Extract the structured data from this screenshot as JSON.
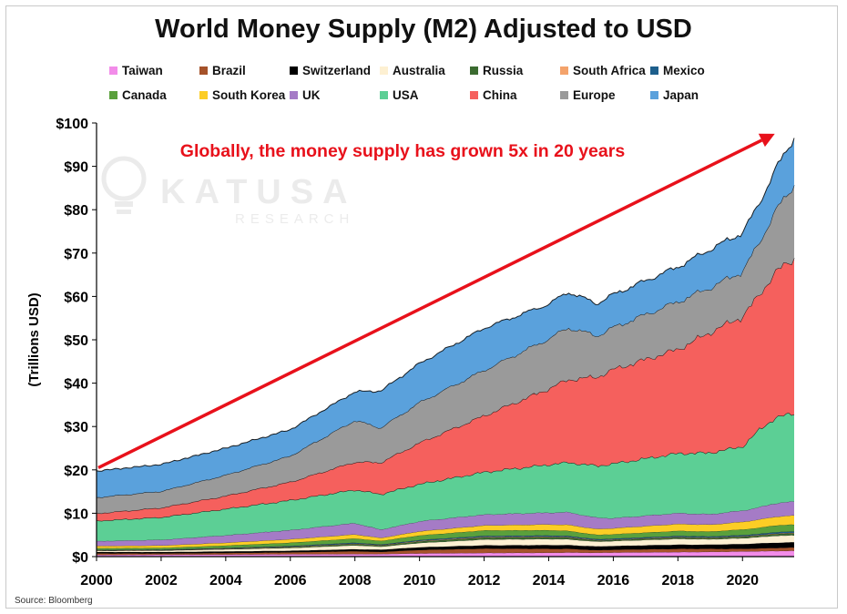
{
  "chart_data": {
    "type": "area",
    "stacked": true,
    "title": "World Money Supply (M2) Adjusted to USD",
    "ylabel": "(Trillions USD)",
    "xlabel": "",
    "xlim": [
      2000,
      2021.6
    ],
    "ylim": [
      0,
      100
    ],
    "x_ticks": [
      "2000",
      "2002",
      "2004",
      "2006",
      "2008",
      "2010",
      "2012",
      "2014",
      "2016",
      "2018",
      "2020"
    ],
    "y_ticks": [
      "$0",
      "$10",
      "$20",
      "$30",
      "$40",
      "$50",
      "$60",
      "$70",
      "$80",
      "$90",
      "$100"
    ],
    "grid": false,
    "legend_position": "top",
    "annotation": "Globally, the money supply has grown 5x in 20 years",
    "annotation_color": "#e8111b",
    "arrow": {
      "from": [
        2000,
        20.5
      ],
      "to": [
        2021,
        97.5
      ]
    },
    "source": "Source: Bloomberg",
    "watermark": {
      "main": "KATUSA",
      "sub": "RESEARCH"
    },
    "x": [
      2000,
      2002,
      2004,
      2006,
      2008,
      2008.8,
      2010,
      2012,
      2014,
      2014.6,
      2015.5,
      2016,
      2018,
      2019,
      2020,
      2020.5,
      2021,
      2021.6
    ],
    "series": [
      {
        "name": "Taiwan",
        "color": "#f28ce9",
        "values": [
          0.4,
          0.45,
          0.5,
          0.55,
          0.6,
          0.6,
          0.75,
          0.85,
          0.9,
          0.95,
          0.9,
          0.95,
          1.05,
          1.1,
          1.2,
          1.25,
          1.3,
          1.35
        ]
      },
      {
        "name": "Brazil",
        "color": "#a5522a",
        "values": [
          0.35,
          0.3,
          0.35,
          0.45,
          0.65,
          0.5,
          0.8,
          1.0,
          0.9,
          0.85,
          0.6,
          0.65,
          0.75,
          0.7,
          0.6,
          0.65,
          0.7,
          0.75
        ]
      },
      {
        "name": "Switzerland",
        "color": "#000000",
        "values": [
          0.3,
          0.3,
          0.35,
          0.35,
          0.45,
          0.5,
          0.6,
          0.75,
          0.85,
          0.85,
          0.85,
          0.85,
          0.95,
          0.95,
          1.1,
          1.15,
          1.2,
          1.2
        ]
      },
      {
        "name": "Australia",
        "color": "#fdf0d2",
        "values": [
          0.3,
          0.35,
          0.5,
          0.65,
          0.9,
          0.7,
          1.0,
          1.35,
          1.4,
          1.35,
          1.1,
          1.15,
          1.35,
          1.25,
          1.35,
          1.45,
          1.6,
          1.6
        ]
      },
      {
        "name": "Russia",
        "color": "#3b6b30",
        "values": [
          0.05,
          0.06,
          0.1,
          0.2,
          0.3,
          0.25,
          0.35,
          0.45,
          0.45,
          0.4,
          0.25,
          0.25,
          0.3,
          0.3,
          0.35,
          0.35,
          0.4,
          0.45
        ]
      },
      {
        "name": "South Africa",
        "color": "#f4a36b",
        "values": [
          0.05,
          0.05,
          0.08,
          0.1,
          0.12,
          0.1,
          0.13,
          0.14,
          0.13,
          0.13,
          0.1,
          0.1,
          0.12,
          0.11,
          0.11,
          0.12,
          0.13,
          0.13
        ]
      },
      {
        "name": "Mexico",
        "color": "#1e5f8c",
        "values": [
          0.1,
          0.1,
          0.12,
          0.15,
          0.2,
          0.15,
          0.2,
          0.25,
          0.25,
          0.25,
          0.2,
          0.2,
          0.25,
          0.25,
          0.25,
          0.25,
          0.3,
          0.3
        ]
      },
      {
        "name": "Canada",
        "color": "#5aa03c",
        "values": [
          0.4,
          0.4,
          0.55,
          0.75,
          0.95,
          0.8,
          1.05,
          1.25,
          1.2,
          1.15,
          1.0,
          1.0,
          1.15,
          1.1,
          1.3,
          1.4,
          1.55,
          1.6
        ]
      },
      {
        "name": "South Korea",
        "color": "#fccd25",
        "values": [
          0.5,
          0.55,
          0.65,
          0.8,
          0.95,
          0.7,
          0.95,
          1.15,
          1.35,
          1.4,
          1.35,
          1.4,
          1.6,
          1.6,
          1.75,
          1.9,
          2.0,
          2.1
        ]
      },
      {
        "name": "UK",
        "color": "#a57bc6",
        "values": [
          1.1,
          1.3,
          1.7,
          2.1,
          2.6,
          1.9,
          2.3,
          2.5,
          2.7,
          2.9,
          2.6,
          2.3,
          2.5,
          2.4,
          2.6,
          2.8,
          3.1,
          3.2
        ]
      },
      {
        "name": "USA",
        "color": "#5ccf95",
        "values": [
          4.7,
          5.2,
          6.1,
          6.9,
          7.7,
          8.2,
          8.6,
          9.8,
          11.1,
          11.5,
          12.0,
          12.6,
          13.8,
          14.2,
          14.8,
          17.8,
          19.7,
          20.4
        ]
      },
      {
        "name": "China",
        "color": "#f5605d",
        "values": [
          1.7,
          2.2,
          3.0,
          4.2,
          6.4,
          7.3,
          9.5,
          13.0,
          17.5,
          19.1,
          20.5,
          21.7,
          24.0,
          27.8,
          30.0,
          31.0,
          33.5,
          35.7
        ]
      },
      {
        "name": "Europe",
        "color": "#9a9a9a",
        "values": [
          3.7,
          3.8,
          4.8,
          6.0,
          9.6,
          8.0,
          9.3,
          10.5,
          11.5,
          12.0,
          9.5,
          9.7,
          11.0,
          10.3,
          10.4,
          12.0,
          14.0,
          17.0
        ]
      },
      {
        "name": "Japan",
        "color": "#5aa1dc",
        "values": [
          6.1,
          6.2,
          6.2,
          6.1,
          6.6,
          8.5,
          9.0,
          9.7,
          8.0,
          8.2,
          7.4,
          7.6,
          8.0,
          8.8,
          8.9,
          9.0,
          9.5,
          10.9
        ]
      }
    ]
  }
}
